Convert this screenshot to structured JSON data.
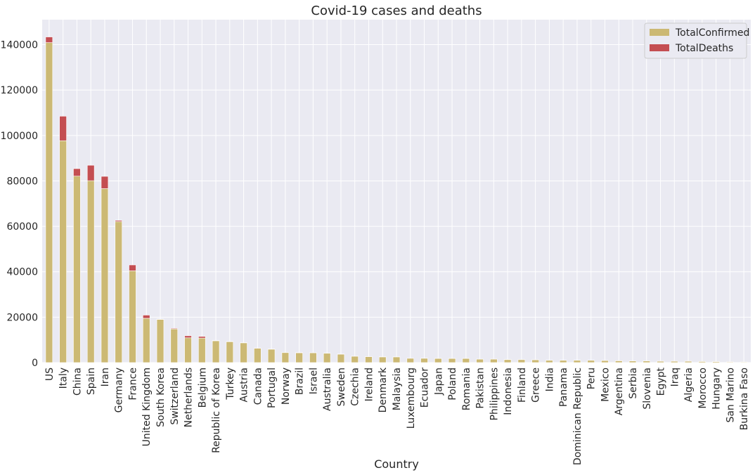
{
  "chart_data": {
    "type": "bar",
    "stacked": true,
    "title": "Covid-19 cases and deaths",
    "xlabel": "Country",
    "ylabel": "",
    "ylim": [
      0,
      151000
    ],
    "yticks": [
      0,
      20000,
      40000,
      60000,
      80000,
      100000,
      120000,
      140000
    ],
    "grid": true,
    "legend_position": "top-right",
    "categories": [
      "US",
      "Italy",
      "China",
      "Spain",
      "Iran",
      "Germany",
      "France",
      "United Kingdom",
      "South Korea",
      "Switzerland",
      "Netherlands",
      "Belgium",
      "Republic of Korea",
      "Turkey",
      "Austria",
      "Canada",
      "Portugal",
      "Norway",
      "Brazil",
      "Israel",
      "Australia",
      "Sweden",
      "Czechia",
      "Ireland",
      "Denmark",
      "Malaysia",
      "Luxembourg",
      "Ecuador",
      "Japan",
      "Poland",
      "Romania",
      "Pakistan",
      "Philippines",
      "Indonesia",
      "Finland",
      "Greece",
      "India",
      "Panama",
      "Dominican Republic",
      "Peru",
      "Mexico",
      "Argentina",
      "Serbia",
      "Slovenia",
      "Egypt",
      "Iraq",
      "Algeria",
      "Morocco",
      "Hungary",
      "San Marino",
      "Burkina Faso"
    ],
    "series": [
      {
        "name": "TotalConfirmed",
        "color": "#ccb974",
        "values": [
          140900,
          97700,
          82100,
          80100,
          76600,
          62100,
          40400,
          19500,
          19000,
          14800,
          10900,
          10800,
          9600,
          9200,
          8700,
          6300,
          5900,
          4400,
          4300,
          4300,
          4100,
          3700,
          2800,
          2600,
          2500,
          2500,
          1900,
          1900,
          1800,
          1800,
          1800,
          1500,
          1500,
          1300,
          1300,
          1200,
          1000,
          1000,
          1000,
          1000,
          900,
          800,
          700,
          700,
          600,
          600,
          600,
          500,
          400,
          300,
          250
        ]
      },
      {
        "name": "TotalDeaths",
        "color": "#c44e52",
        "values": [
          2500,
          10800,
          3300,
          6800,
          5400,
          500,
          2600,
          1400,
          150,
          300,
          900,
          700,
          150,
          150,
          100,
          60,
          100,
          20,
          150,
          20,
          20,
          100,
          30,
          40,
          70,
          30,
          20,
          50,
          60,
          30,
          40,
          20,
          70,
          100,
          20,
          40,
          30,
          20,
          40,
          30,
          20,
          20,
          20,
          20,
          40,
          50,
          40,
          30,
          20,
          30,
          20
        ]
      }
    ]
  }
}
